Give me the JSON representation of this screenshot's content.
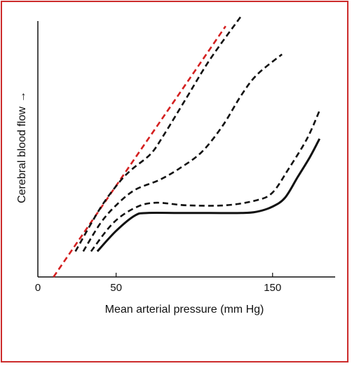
{
  "chart_data": {
    "type": "line",
    "title": "",
    "xlabel": "Mean arterial pressure (mm Hg)",
    "ylabel": "Cerebral blood flow",
    "ylabel_arrow": "→",
    "xlim": [
      0,
      190
    ],
    "ylim": [
      0,
      100
    ],
    "x_ticks": [
      {
        "value": 0,
        "label": "0"
      },
      {
        "value": 50,
        "label": "50"
      },
      {
        "value": 150,
        "label": "150"
      }
    ],
    "grid": false,
    "legend": "none",
    "series": [
      {
        "style": "dashed",
        "color": "#d42020",
        "points": [
          [
            10,
            0
          ],
          [
            120,
            98
          ]
        ]
      },
      {
        "style": "dashed",
        "color": "#111111",
        "points": [
          [
            24,
            10
          ],
          [
            40,
            27
          ],
          [
            52,
            37
          ],
          [
            60,
            42
          ],
          [
            72,
            48
          ],
          [
            80,
            55
          ],
          [
            95,
            70
          ],
          [
            110,
            85
          ],
          [
            130,
            102
          ]
        ]
      },
      {
        "style": "dashed",
        "color": "#111111",
        "points": [
          [
            29,
            10
          ],
          [
            40,
            21
          ],
          [
            50,
            28
          ],
          [
            62,
            34
          ],
          [
            78,
            38
          ],
          [
            92,
            43
          ],
          [
            105,
            49
          ],
          [
            118,
            59
          ],
          [
            130,
            71
          ],
          [
            140,
            79
          ],
          [
            156,
            87
          ]
        ]
      },
      {
        "style": "dashed",
        "color": "#111111",
        "points": [
          [
            34,
            10
          ],
          [
            48,
            21
          ],
          [
            62,
            27
          ],
          [
            75,
            29
          ],
          [
            95,
            28
          ],
          [
            120,
            28
          ],
          [
            140,
            30
          ],
          [
            150,
            33
          ],
          [
            160,
            42
          ],
          [
            172,
            54
          ],
          [
            180,
            65
          ]
        ]
      },
      {
        "style": "solid",
        "color": "#111111",
        "points": [
          [
            38,
            10
          ],
          [
            50,
            18
          ],
          [
            62,
            24
          ],
          [
            70,
            25
          ],
          [
            90,
            25
          ],
          [
            110,
            25
          ],
          [
            130,
            25
          ],
          [
            140,
            25.5
          ],
          [
            150,
            27.5
          ],
          [
            158,
            31
          ],
          [
            166,
            39
          ],
          [
            174,
            47
          ],
          [
            180,
            54
          ]
        ]
      }
    ]
  }
}
